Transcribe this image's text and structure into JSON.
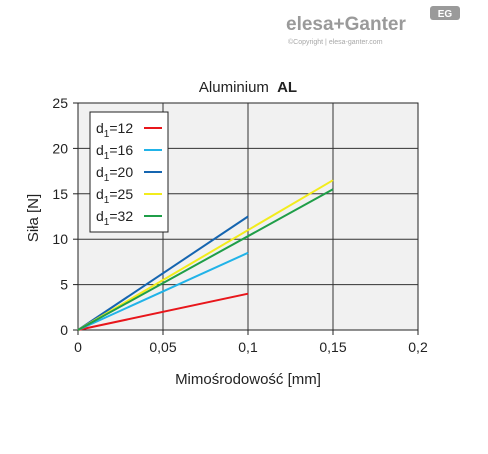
{
  "brand": {
    "logo_text": "elesa+Ganter",
    "badge_text": "EG",
    "copyright": "©Copyright | elesa-ganter.com"
  },
  "chart_data": {
    "type": "line",
    "title": "Aluminium AL",
    "title_plain": "Aluminium",
    "title_bold": "AL",
    "xlabel": "Mimośrodowość [mm]",
    "ylabel": "Siła [N]",
    "xlim": [
      0,
      0.2
    ],
    "ylim": [
      0,
      25
    ],
    "x_ticks": [
      0,
      0.05,
      0.1,
      0.15,
      0.2
    ],
    "x_tick_labels": [
      "0",
      "0,05",
      "0,1",
      "0,15",
      "0,2"
    ],
    "y_ticks": [
      0,
      5,
      10,
      15,
      20,
      25
    ],
    "y_tick_labels": [
      "0",
      "5",
      "10",
      "15",
      "20",
      "25"
    ],
    "grid": true,
    "legend_position": "top-left",
    "series": [
      {
        "name": "d1=12",
        "label_main": "d",
        "label_sub": "1",
        "label_rest": "=12",
        "color": "#e8161b",
        "x": [
          0,
          0.1
        ],
        "y": [
          0,
          4
        ]
      },
      {
        "name": "d1=16",
        "label_main": "d",
        "label_sub": "1",
        "label_rest": "=16",
        "color": "#21b3e8",
        "x": [
          0,
          0.1
        ],
        "y": [
          0,
          8.5
        ]
      },
      {
        "name": "d1=20",
        "label_main": "d",
        "label_sub": "1",
        "label_rest": "=20",
        "color": "#1565b0",
        "x": [
          0,
          0.1
        ],
        "y": [
          0,
          12.5
        ]
      },
      {
        "name": "d1=25",
        "label_main": "d",
        "label_sub": "1",
        "label_rest": "=25",
        "color": "#f2ec1c",
        "x": [
          0,
          0.15
        ],
        "y": [
          0,
          16.5
        ]
      },
      {
        "name": "d1=32",
        "label_main": "d",
        "label_sub": "1",
        "label_rest": "=32",
        "color": "#1f9e48",
        "x": [
          0,
          0.15
        ],
        "y": [
          0,
          15.5
        ]
      }
    ]
  }
}
